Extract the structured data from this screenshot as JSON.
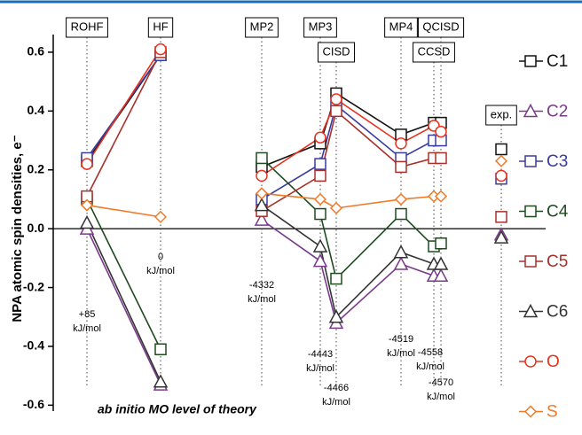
{
  "chart_data": {
    "type": "line",
    "ylabel": "NPA atomic spin densities, e⁻",
    "xlabel": "ab initio MO level of theory",
    "categories": [
      "ROHF",
      "HF",
      "MP2",
      "MP3",
      "CISD",
      "MP4",
      "CCSD",
      "QCISD",
      "exp."
    ],
    "ylim": [
      -0.62,
      0.66
    ],
    "yticks": [
      -0.6,
      -0.4,
      -0.2,
      {
        "value": 0,
        "label": "0.0"
      },
      0.2,
      0.4,
      0.6
    ],
    "zero_line": true,
    "series": [
      {
        "name": "C1",
        "color": "#111111",
        "marker": "square",
        "values": [
          0.23,
          0.59,
          0.21,
          0.29,
          0.46,
          0.32,
          0.36,
          0.36,
          0.27
        ]
      },
      {
        "name": "C2",
        "color": "#7a3a8c",
        "marker": "triangle",
        "values": [
          0.0,
          -0.53,
          0.03,
          -0.11,
          -0.32,
          -0.12,
          -0.16,
          -0.16,
          -0.02
        ]
      },
      {
        "name": "C3",
        "color": "#3a3aa0",
        "marker": "square",
        "values": [
          0.24,
          0.59,
          0.1,
          0.22,
          0.42,
          0.24,
          0.3,
          0.3,
          0.17
        ]
      },
      {
        "name": "C4",
        "color": "#1e4a1e",
        "marker": "square",
        "values": [
          0.1,
          -0.41,
          0.24,
          0.05,
          -0.17,
          0.05,
          -0.06,
          -0.05,
          null
        ]
      },
      {
        "name": "C5",
        "color": "#a8302a",
        "marker": "square",
        "values": [
          0.11,
          0.6,
          0.06,
          0.18,
          0.4,
          0.21,
          0.24,
          0.24,
          0.04
        ]
      },
      {
        "name": "C6",
        "color": "#333333",
        "marker": "triangle",
        "values": [
          0.02,
          -0.52,
          0.08,
          -0.06,
          -0.3,
          -0.08,
          -0.12,
          -0.12,
          -0.03
        ]
      },
      {
        "name": "O",
        "color": "#e8321e",
        "marker": "circle",
        "values": [
          0.22,
          0.61,
          0.18,
          0.31,
          0.44,
          0.29,
          0.35,
          0.33,
          0.18
        ]
      },
      {
        "name": "S",
        "color": "#f07a28",
        "marker": "diamond",
        "values": [
          0.08,
          0.04,
          0.12,
          0.1,
          0.07,
          0.1,
          0.11,
          0.11,
          0.23
        ]
      }
    ],
    "annotations": [
      {
        "lines": [
          "+85",
          "kJ/mol"
        ]
      },
      {
        "lines": [
          "0",
          "kJ/mol"
        ]
      },
      {
        "lines": [
          "-4332",
          "kJ/mol"
        ]
      },
      {
        "lines": [
          "-4443",
          "kJ/mol"
        ]
      },
      {
        "lines": [
          "-4466",
          "kJ/mol"
        ]
      },
      {
        "lines": [
          "-4519",
          "kJ/mol"
        ]
      },
      {
        "lines": [
          "-4558",
          "kJ/mol"
        ]
      },
      {
        "lines": [
          "-4570",
          "kJ/mol"
        ]
      }
    ]
  }
}
